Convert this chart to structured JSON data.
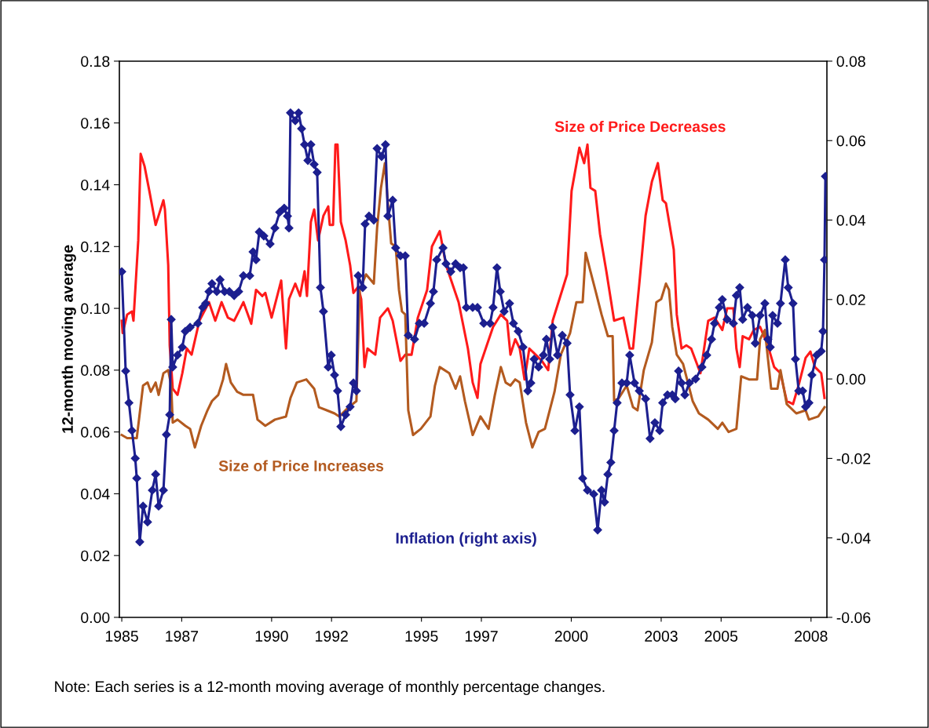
{
  "chart_data": {
    "type": "line",
    "ylabel": "12-month moving average",
    "xlim": [
      1984.92,
      2008.53
    ],
    "xticks": [
      1985,
      1987,
      1990,
      1992,
      1995,
      1997,
      2000,
      2003,
      2005,
      2008
    ],
    "ylim": [
      0,
      0.18
    ],
    "yticks": [
      {
        "value": 0,
        "label": "0.00"
      },
      {
        "value": 0.02,
        "label": "0.02"
      },
      {
        "value": 0.04,
        "label": "0.04"
      },
      {
        "value": 0.06,
        "label": "0.06"
      },
      {
        "value": 0.08,
        "label": "0.08"
      },
      {
        "value": 0.1,
        "label": "0.10"
      },
      {
        "value": 0.12,
        "label": "0.12"
      },
      {
        "value": 0.14,
        "label": "0.14"
      },
      {
        "value": 0.16,
        "label": "0.16"
      },
      {
        "value": 0.18,
        "label": "0.18"
      }
    ],
    "y2lim": [
      -0.06,
      0.08
    ],
    "y2ticks": [
      {
        "value": -0.06,
        "label": "-0.06"
      },
      {
        "value": -0.04,
        "label": "-0.04"
      },
      {
        "value": -0.02,
        "label": "-0.02"
      },
      {
        "value": 0,
        "label": "0.00"
      },
      {
        "value": 0.02,
        "label": "0.02"
      },
      {
        "value": 0.04,
        "label": "0.04"
      },
      {
        "value": 0.06,
        "label": "0.06"
      },
      {
        "value": 0.08,
        "label": "0.08"
      }
    ],
    "grid": false,
    "legend": false,
    "line_style": "solid",
    "annotations": [
      "Note: Each series is a 12-month moving average of monthly percentage changes."
    ],
    "series": [
      {
        "name": "Size of Price Decreases",
        "color": "#ff1a1a",
        "marker": "none",
        "x": [
          1985.0,
          1985.03,
          1985.18,
          1985.34,
          1985.39,
          1985.55,
          1985.63,
          1985.76,
          1985.92,
          1986.13,
          1986.23,
          1986.39,
          1986.44,
          1986.55,
          1986.6,
          1986.7,
          1986.86,
          1987.02,
          1987.17,
          1987.33,
          1987.59,
          1987.91,
          1988.12,
          1988.33,
          1988.54,
          1988.75,
          1989.06,
          1989.32,
          1989.48,
          1989.69,
          1989.79,
          1990.0,
          1990.32,
          1990.48,
          1990.58,
          1990.79,
          1990.95,
          1991.1,
          1991.18,
          1991.31,
          1991.42,
          1991.55,
          1991.73,
          1991.89,
          1991.94,
          1992.05,
          1992.13,
          1992.2,
          1992.31,
          1992.47,
          1992.62,
          1992.73,
          1992.89,
          1992.99,
          1993.1,
          1993.2,
          1993.46,
          1993.62,
          1993.88,
          1994.04,
          1994.3,
          1994.46,
          1994.67,
          1994.88,
          1995.19,
          1995.35,
          1995.61,
          1995.82,
          1996.24,
          1996.55,
          1996.71,
          1996.87,
          1996.97,
          1997.18,
          1997.39,
          1997.65,
          1997.86,
          1997.97,
          1998.13,
          1998.28,
          1998.44,
          1998.6,
          1998.81,
          1999.02,
          1999.23,
          1999.38,
          1999.7,
          1999.86,
          2000.01,
          2000.27,
          2000.43,
          2000.54,
          2000.64,
          2000.8,
          2000.96,
          2001.17,
          2001.43,
          2001.74,
          2001.95,
          2002.06,
          2002.27,
          2002.48,
          2002.69,
          2002.89,
          2003.05,
          2003.16,
          2003.42,
          2003.52,
          2003.68,
          2003.84,
          2004.0,
          2004.31,
          2004.57,
          2004.78,
          2005.04,
          2005.2,
          2005.41,
          2005.51,
          2005.62,
          2005.72,
          2005.93,
          2006.09,
          2006.3,
          2006.56,
          2006.77,
          2006.98,
          2007.19,
          2007.4,
          2007.61,
          2007.82,
          2007.98,
          2008.13,
          2008.34,
          2008.45
        ],
        "values": [
          0.096,
          0.092,
          0.098,
          0.099,
          0.096,
          0.122,
          0.15,
          0.146,
          0.138,
          0.127,
          0.13,
          0.135,
          0.132,
          0.114,
          0.088,
          0.074,
          0.072,
          0.079,
          0.087,
          0.085,
          0.096,
          0.102,
          0.096,
          0.102,
          0.097,
          0.096,
          0.102,
          0.095,
          0.106,
          0.104,
          0.105,
          0.097,
          0.109,
          0.087,
          0.103,
          0.108,
          0.104,
          0.112,
          0.104,
          0.128,
          0.132,
          0.122,
          0.13,
          0.133,
          0.127,
          0.127,
          0.153,
          0.153,
          0.128,
          0.122,
          0.114,
          0.105,
          0.107,
          0.103,
          0.081,
          0.087,
          0.085,
          0.097,
          0.1,
          0.096,
          0.083,
          0.085,
          0.085,
          0.097,
          0.106,
          0.12,
          0.125,
          0.114,
          0.102,
          0.087,
          0.076,
          0.071,
          0.082,
          0.088,
          0.094,
          0.098,
          0.096,
          0.085,
          0.09,
          0.087,
          0.077,
          0.087,
          0.085,
          0.083,
          0.08,
          0.096,
          0.106,
          0.111,
          0.138,
          0.152,
          0.147,
          0.153,
          0.139,
          0.138,
          0.124,
          0.112,
          0.096,
          0.097,
          0.087,
          0.087,
          0.108,
          0.13,
          0.141,
          0.147,
          0.135,
          0.134,
          0.119,
          0.098,
          0.087,
          0.088,
          0.087,
          0.079,
          0.096,
          0.097,
          0.093,
          0.1,
          0.1,
          0.087,
          0.081,
          0.091,
          0.09,
          0.093,
          0.094,
          0.088,
          0.081,
          0.079,
          0.07,
          0.069,
          0.076,
          0.084,
          0.086,
          0.081,
          0.079,
          0.071
        ]
      },
      {
        "name": "Size of Price Increases",
        "color": "#b35a1f",
        "marker": "none",
        "x": [
          1985.0,
          1985.18,
          1985.5,
          1985.71,
          1985.86,
          1985.97,
          1986.13,
          1986.23,
          1986.39,
          1986.55,
          1986.65,
          1986.7,
          1986.86,
          1987.12,
          1987.28,
          1987.44,
          1987.65,
          1987.86,
          1988.01,
          1988.22,
          1988.38,
          1988.48,
          1988.64,
          1988.85,
          1989.06,
          1989.38,
          1989.53,
          1989.79,
          1990.11,
          1990.48,
          1990.63,
          1990.84,
          1991.16,
          1991.42,
          1991.58,
          1991.84,
          1992.1,
          1992.26,
          1992.57,
          1992.83,
          1992.94,
          1993.15,
          1993.41,
          1993.52,
          1993.65,
          1993.78,
          1993.88,
          1993.99,
          1994.14,
          1994.25,
          1994.35,
          1994.46,
          1994.56,
          1994.72,
          1994.98,
          1995.3,
          1995.45,
          1995.61,
          1995.93,
          1996.14,
          1996.29,
          1996.45,
          1996.71,
          1996.97,
          1997.24,
          1997.45,
          1997.65,
          1997.81,
          1997.97,
          1998.13,
          1998.28,
          1998.49,
          1998.7,
          1998.91,
          1999.12,
          1999.44,
          1999.65,
          1999.96,
          2000.17,
          2000.38,
          2000.48,
          2000.64,
          2000.8,
          2001.01,
          2001.22,
          2001.38,
          2001.43,
          2001.59,
          2001.85,
          2002.06,
          2002.21,
          2002.42,
          2002.69,
          2002.84,
          2003.0,
          2003.16,
          2003.26,
          2003.37,
          2003.52,
          2003.73,
          2004.05,
          2004.26,
          2004.57,
          2004.89,
          2005.04,
          2005.25,
          2005.51,
          2005.67,
          2005.93,
          2006.2,
          2006.3,
          2006.46,
          2006.67,
          2006.88,
          2006.98,
          2007.19,
          2007.51,
          2007.82,
          2007.93,
          2008.24,
          2008.45
        ],
        "values": [
          0.059,
          0.058,
          0.058,
          0.075,
          0.076,
          0.073,
          0.076,
          0.072,
          0.079,
          0.08,
          0.075,
          0.063,
          0.064,
          0.062,
          0.061,
          0.055,
          0.062,
          0.067,
          0.07,
          0.072,
          0.077,
          0.082,
          0.076,
          0.073,
          0.072,
          0.072,
          0.064,
          0.062,
          0.064,
          0.065,
          0.071,
          0.076,
          0.077,
          0.074,
          0.068,
          0.067,
          0.066,
          0.065,
          0.068,
          0.07,
          0.106,
          0.111,
          0.108,
          0.126,
          0.139,
          0.147,
          0.134,
          0.121,
          0.12,
          0.106,
          0.099,
          0.098,
          0.067,
          0.059,
          0.061,
          0.065,
          0.075,
          0.081,
          0.079,
          0.074,
          0.078,
          0.07,
          0.059,
          0.065,
          0.061,
          0.072,
          0.081,
          0.076,
          0.075,
          0.077,
          0.076,
          0.063,
          0.055,
          0.06,
          0.061,
          0.073,
          0.085,
          0.092,
          0.102,
          0.102,
          0.118,
          0.112,
          0.106,
          0.098,
          0.091,
          0.091,
          0.07,
          0.071,
          0.075,
          0.068,
          0.067,
          0.08,
          0.089,
          0.102,
          0.103,
          0.108,
          0.106,
          0.094,
          0.085,
          0.082,
          0.07,
          0.066,
          0.064,
          0.061,
          0.063,
          0.06,
          0.061,
          0.078,
          0.077,
          0.077,
          0.09,
          0.093,
          0.074,
          0.074,
          0.08,
          0.069,
          0.066,
          0.067,
          0.064,
          0.065,
          0.068
        ]
      },
      {
        "name": "Inflation (right axis)",
        "color": "#1c1f8f",
        "axis": "y2",
        "marker": "diamond",
        "x": [
          1985.0,
          1985.13,
          1985.24,
          1985.34,
          1985.45,
          1985.5,
          1985.6,
          1985.71,
          1985.86,
          1986.02,
          1986.13,
          1986.23,
          1986.39,
          1986.49,
          1986.6,
          1986.65,
          1986.7,
          1986.86,
          1987.02,
          1987.12,
          1987.28,
          1987.54,
          1987.7,
          1987.8,
          1987.91,
          1988.01,
          1988.17,
          1988.28,
          1988.43,
          1988.59,
          1988.75,
          1988.9,
          1989.06,
          1989.27,
          1989.38,
          1989.48,
          1989.59,
          1989.74,
          1989.95,
          1990.11,
          1990.27,
          1990.42,
          1990.53,
          1990.58,
          1990.63,
          1990.79,
          1990.9,
          1991.0,
          1991.1,
          1991.21,
          1991.31,
          1991.42,
          1991.52,
          1991.63,
          1991.73,
          1991.89,
          1991.99,
          1992.1,
          1992.2,
          1992.31,
          1992.47,
          1992.62,
          1992.73,
          1992.83,
          1992.89,
          1993.04,
          1993.12,
          1993.25,
          1993.41,
          1993.52,
          1993.67,
          1993.8,
          1993.88,
          1994.04,
          1994.14,
          1994.3,
          1994.46,
          1994.56,
          1994.77,
          1994.93,
          1995.09,
          1995.3,
          1995.4,
          1995.51,
          1995.72,
          1995.82,
          1995.98,
          1996.14,
          1996.29,
          1996.4,
          1996.5,
          1996.71,
          1996.87,
          1997.08,
          1997.29,
          1997.39,
          1997.52,
          1997.63,
          1997.76,
          1997.94,
          1998.07,
          1998.23,
          1998.39,
          1998.55,
          1998.65,
          1998.76,
          1998.91,
          1999.07,
          1999.17,
          1999.28,
          1999.38,
          1999.54,
          1999.7,
          1999.86,
          1999.96,
          2000.12,
          2000.27,
          2000.38,
          2000.54,
          2000.75,
          2000.88,
          2001.01,
          2001.11,
          2001.22,
          2001.32,
          2001.43,
          2001.53,
          2001.69,
          2001.85,
          2001.95,
          2002.11,
          2002.27,
          2002.48,
          2002.63,
          2002.79,
          2002.95,
          2003.05,
          2003.21,
          2003.37,
          2003.47,
          2003.58,
          2003.68,
          2003.79,
          2003.94,
          2004.15,
          2004.36,
          2004.52,
          2004.68,
          2004.78,
          2004.94,
          2005.04,
          2005.2,
          2005.41,
          2005.51,
          2005.62,
          2005.72,
          2005.88,
          2006.04,
          2006.14,
          2006.3,
          2006.46,
          2006.56,
          2006.64,
          2006.72,
          2006.88,
          2006.98,
          2007.14,
          2007.24,
          2007.4,
          2007.48,
          2007.59,
          2007.72,
          2007.82,
          2007.93,
          2008.03,
          2008.19,
          2008.34,
          2008.4,
          2008.45,
          2008.48
        ],
        "values": [
          0.027,
          0.002,
          -0.006,
          -0.013,
          -0.02,
          -0.025,
          -0.041,
          -0.032,
          -0.036,
          -0.028,
          -0.024,
          -0.032,
          -0.028,
          -0.014,
          -0.009,
          0.015,
          0.003,
          0.006,
          0.008,
          0.012,
          0.013,
          0.014,
          0.018,
          0.019,
          0.022,
          0.024,
          0.022,
          0.025,
          0.022,
          0.022,
          0.021,
          0.022,
          0.026,
          0.026,
          0.032,
          0.03,
          0.037,
          0.036,
          0.034,
          0.038,
          0.042,
          0.043,
          0.041,
          0.038,
          0.067,
          0.065,
          0.067,
          0.063,
          0.059,
          0.055,
          0.059,
          0.054,
          0.052,
          0.023,
          0.017,
          0.003,
          0.006,
          0.001,
          -0.003,
          -0.012,
          -0.009,
          -0.007,
          -0.001,
          -0.003,
          0.026,
          0.023,
          0.039,
          0.041,
          0.04,
          0.058,
          0.056,
          0.059,
          0.041,
          0.045,
          0.033,
          0.031,
          0.031,
          0.011,
          0.01,
          0.014,
          0.014,
          0.019,
          0.022,
          0.03,
          0.033,
          0.029,
          0.027,
          0.029,
          0.028,
          0.028,
          0.018,
          0.018,
          0.018,
          0.014,
          0.014,
          0.018,
          0.028,
          0.022,
          0.017,
          0.019,
          0.014,
          0.012,
          0.008,
          -0.003,
          -0.001,
          0.005,
          0.003,
          0.006,
          0.01,
          0.005,
          0.013,
          0.006,
          0.011,
          0.009,
          -0.004,
          -0.013,
          -0.007,
          -0.025,
          -0.028,
          -0.029,
          -0.038,
          -0.028,
          -0.031,
          -0.024,
          -0.021,
          -0.013,
          -0.006,
          -0.001,
          -0.001,
          0.006,
          -0.001,
          -0.003,
          -0.005,
          -0.015,
          -0.011,
          -0.013,
          -0.006,
          -0.004,
          -0.004,
          -0.005,
          0.002,
          -0.001,
          -0.004,
          -0.001,
          0.0,
          0.003,
          0.006,
          0.01,
          0.014,
          0.018,
          0.02,
          0.015,
          0.014,
          0.021,
          0.023,
          0.015,
          0.018,
          0.016,
          0.009,
          0.016,
          0.019,
          0.01,
          0.008,
          0.016,
          0.014,
          0.019,
          0.03,
          0.023,
          0.019,
          0.005,
          -0.003,
          -0.003,
          -0.007,
          -0.006,
          0.001,
          0.006,
          0.007,
          0.012,
          0.03,
          0.051
        ]
      }
    ]
  }
}
